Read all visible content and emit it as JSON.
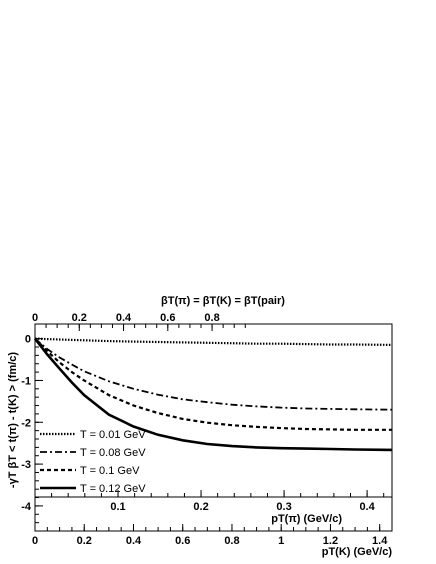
{
  "chart_data": {
    "type": "line",
    "top_axis": {
      "label": "βT(π) = βT(K) = βT(pair)",
      "ticks": [
        "0",
        "0.2",
        "0.4",
        "0.6",
        "0.8"
      ],
      "tick_values": [
        0,
        0.2,
        0.4,
        0.6,
        0.8
      ]
    },
    "inner_x_axis": {
      "label": "pT(π) (GeV/c)",
      "ticks": [
        "0.1",
        "0.2",
        "0.3",
        "0.4"
      ],
      "tick_values": [
        0.1,
        0.2,
        0.3,
        0.4
      ]
    },
    "bottom_x_axis": {
      "label": "pT(K) (GeV/c)",
      "ticks": [
        "0",
        "0.2",
        "0.4",
        "0.6",
        "0.8",
        "1",
        "1.2",
        "1.4"
      ],
      "tick_values": [
        0,
        0.2,
        0.4,
        0.6,
        0.8,
        1.0,
        1.2,
        1.4
      ],
      "xlim": [
        0,
        1.45
      ]
    },
    "y_axis": {
      "label": "-γT βT < t(π) - t(K) > (fm/c)",
      "ticks": [
        "0",
        "-1",
        "-2",
        "-3",
        "-4"
      ],
      "tick_values": [
        0,
        -1,
        -2,
        -3,
        -4
      ],
      "ylim": [
        -4.6,
        0.35
      ]
    },
    "x": [
      0,
      0.05,
      0.1,
      0.15,
      0.2,
      0.3,
      0.4,
      0.5,
      0.6,
      0.7,
      0.8,
      0.9,
      1.0,
      1.1,
      1.2,
      1.3,
      1.45
    ],
    "series": [
      {
        "name": "T = 0.01 GeV",
        "dash": "dotted",
        "width": 2.2,
        "values": [
          0,
          -0.01,
          -0.02,
          -0.03,
          -0.04,
          -0.06,
          -0.07,
          -0.08,
          -0.09,
          -0.1,
          -0.11,
          -0.12,
          -0.12,
          -0.13,
          -0.14,
          -0.14,
          -0.15
        ]
      },
      {
        "name": "T = 0.08 GeV",
        "dash": "dashdot",
        "width": 1.8,
        "values": [
          0,
          -0.25,
          -0.45,
          -0.62,
          -0.78,
          -1.02,
          -1.2,
          -1.34,
          -1.45,
          -1.52,
          -1.58,
          -1.62,
          -1.65,
          -1.67,
          -1.68,
          -1.69,
          -1.7
        ]
      },
      {
        "name": "T = 0.1 GeV",
        "dash": "dashed",
        "width": 2.2,
        "values": [
          0,
          -0.3,
          -0.57,
          -0.8,
          -1.0,
          -1.35,
          -1.6,
          -1.78,
          -1.92,
          -2.01,
          -2.07,
          -2.11,
          -2.14,
          -2.16,
          -2.17,
          -2.18,
          -2.18
        ]
      },
      {
        "name": "T = 0.12 GeV",
        "dash": "solid",
        "width": 2.6,
        "values": [
          0,
          -0.38,
          -0.72,
          -1.05,
          -1.35,
          -1.82,
          -2.1,
          -2.3,
          -2.43,
          -2.52,
          -2.57,
          -2.6,
          -2.62,
          -2.63,
          -2.64,
          -2.65,
          -2.66
        ]
      }
    ],
    "legend_position": "bottom-left",
    "grid": false
  }
}
